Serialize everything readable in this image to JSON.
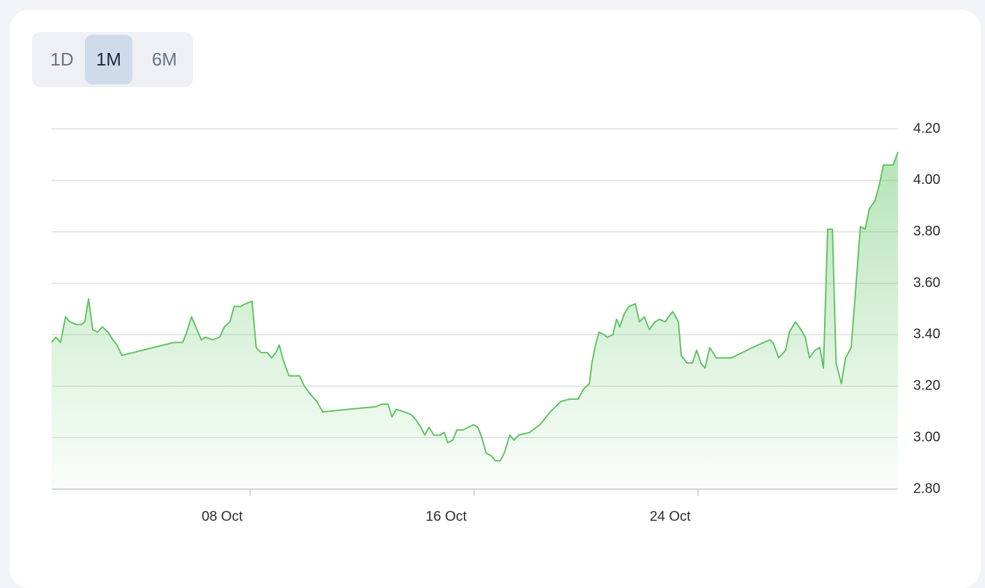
{
  "range_buttons": [
    "1D",
    "1M",
    "6M"
  ],
  "selected_button": 1,
  "chart_data": {
    "type": "area",
    "color": "#5cc35f",
    "grid": true,
    "xlim": [
      0.91,
      31.14
    ],
    "xticks": [
      {
        "value": 8,
        "label": "08 Oct"
      },
      {
        "value": 16,
        "label": "16 Oct"
      },
      {
        "value": 24,
        "label": "24 Oct"
      }
    ],
    "ylim": [
      2.8,
      4.2
    ],
    "yticks": [
      {
        "value": 2.8,
        "label": "2.80"
      },
      {
        "value": 3.0,
        "label": "3.00"
      },
      {
        "value": 3.2,
        "label": "3.20"
      },
      {
        "value": 3.4,
        "label": "3.40"
      },
      {
        "value": 3.6,
        "label": "3.60"
      },
      {
        "value": 3.8,
        "label": "3.80"
      },
      {
        "value": 4.0,
        "label": "4.00"
      },
      {
        "value": 4.2,
        "label": "4.20"
      }
    ],
    "x": [
      0.91,
      1.06,
      1.23,
      1.41,
      1.56,
      1.81,
      1.98,
      2.1,
      2.23,
      2.38,
      2.55,
      2.73,
      2.93,
      3.1,
      3.25,
      3.42,
      3.8,
      4.54,
      5.29,
      5.59,
      5.74,
      5.91,
      6.06,
      6.26,
      6.41,
      6.66,
      6.91,
      7.08,
      7.28,
      7.43,
      7.66,
      7.83,
      8.07,
      8.22,
      8.4,
      8.62,
      8.77,
      8.92,
      9.04,
      9.19,
      9.39,
      9.77,
      9.94,
      10.14,
      10.39,
      10.59,
      11.51,
      12.5,
      12.7,
      12.93,
      13.07,
      13.22,
      13.5,
      13.75,
      13.92,
      14.1,
      14.24,
      14.39,
      14.57,
      14.79,
      14.94,
      15.06,
      15.24,
      15.39,
      15.61,
      15.79,
      15.99,
      16.14,
      16.28,
      16.43,
      16.61,
      16.76,
      16.93,
      17.08,
      17.28,
      17.43,
      17.6,
      17.98,
      18.35,
      18.72,
      19.09,
      19.42,
      19.72,
      19.92,
      20.12,
      20.21,
      20.34,
      20.46,
      20.64,
      20.76,
      20.96,
      21.09,
      21.21,
      21.36,
      21.53,
      21.76,
      21.91,
      22.08,
      22.26,
      22.46,
      22.63,
      22.83,
      22.95,
      23.1,
      23.3,
      23.4,
      23.6,
      23.8,
      23.95,
      24.1,
      24.25,
      24.42,
      24.65,
      25.19,
      25.94,
      26.56,
      26.68,
      26.88,
      27.13,
      27.26,
      27.48,
      27.68,
      27.83,
      27.98,
      28.18,
      28.35,
      28.48,
      28.63,
      28.8,
      28.93,
      29.12,
      29.27,
      29.47,
      29.62,
      29.8,
      29.97,
      30.12,
      30.32,
      30.47,
      30.62,
      30.97,
      31.14
    ],
    "values": [
      3.37,
      3.39,
      3.37,
      3.47,
      3.45,
      3.44,
      3.44,
      3.45,
      3.54,
      3.42,
      3.41,
      3.43,
      3.41,
      3.38,
      3.36,
      3.32,
      3.33,
      3.35,
      3.37,
      3.37,
      3.41,
      3.47,
      3.43,
      3.38,
      3.39,
      3.38,
      3.39,
      3.43,
      3.45,
      3.51,
      3.51,
      3.52,
      3.53,
      3.35,
      3.33,
      3.33,
      3.31,
      3.33,
      3.36,
      3.3,
      3.24,
      3.24,
      3.2,
      3.17,
      3.14,
      3.1,
      3.11,
      3.12,
      3.13,
      3.13,
      3.08,
      3.11,
      3.1,
      3.09,
      3.07,
      3.04,
      3.01,
      3.04,
      3.01,
      3.01,
      3.02,
      2.98,
      2.99,
      3.03,
      3.03,
      3.04,
      3.05,
      3.04,
      3.0,
      2.94,
      2.93,
      2.91,
      2.91,
      2.94,
      3.01,
      2.99,
      3.01,
      3.02,
      3.05,
      3.1,
      3.14,
      3.15,
      3.15,
      3.19,
      3.21,
      3.29,
      3.36,
      3.41,
      3.4,
      3.39,
      3.4,
      3.46,
      3.43,
      3.48,
      3.51,
      3.52,
      3.45,
      3.47,
      3.42,
      3.45,
      3.46,
      3.45,
      3.47,
      3.49,
      3.45,
      3.32,
      3.29,
      3.29,
      3.34,
      3.29,
      3.27,
      3.35,
      3.31,
      3.31,
      3.35,
      3.38,
      3.37,
      3.31,
      3.34,
      3.41,
      3.45,
      3.42,
      3.39,
      3.31,
      3.34,
      3.35,
      3.27,
      3.81,
      3.81,
      3.29,
      3.21,
      3.31,
      3.35,
      3.56,
      3.82,
      3.81,
      3.89,
      3.92,
      3.98,
      4.06,
      4.06,
      4.11
    ]
  }
}
